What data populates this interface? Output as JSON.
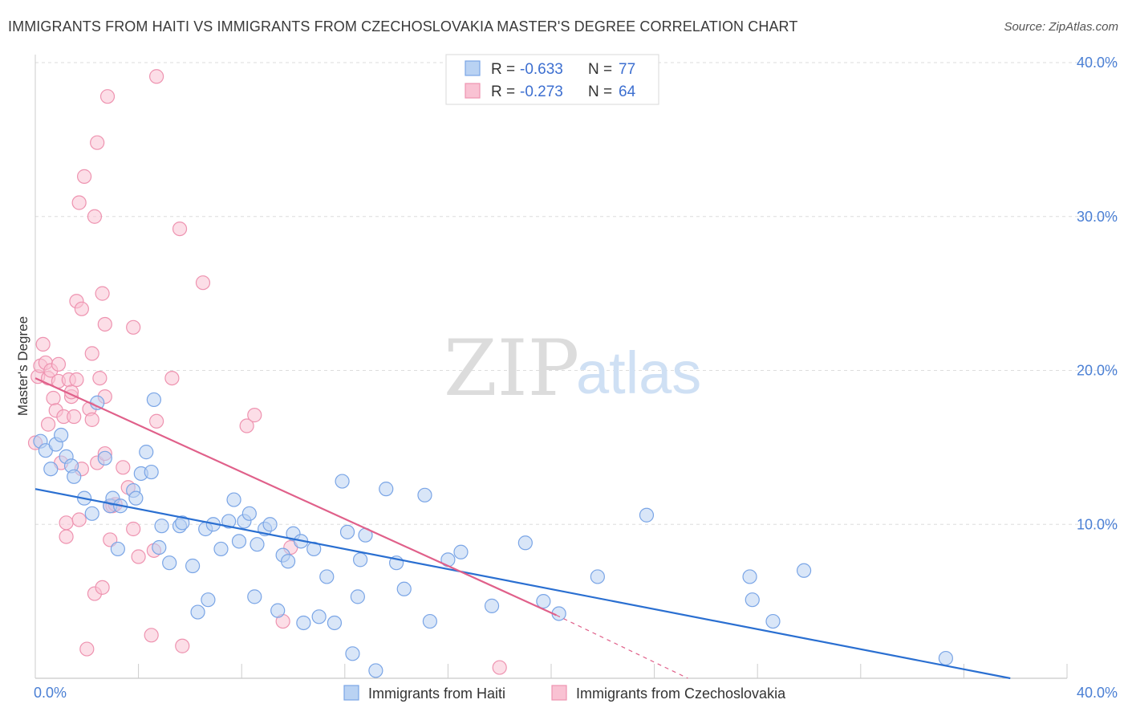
{
  "title": "IMMIGRANTS FROM HAITI VS IMMIGRANTS FROM CZECHOSLOVAKIA MASTER'S DEGREE CORRELATION CHART",
  "source": "Source: ZipAtlas.com",
  "watermark": {
    "zip": "ZIP",
    "atlas": "atlas"
  },
  "colors": {
    "haiti_fill": "#b9d2f3",
    "haiti_stroke": "#7aa5e6",
    "haiti_line": "#2a6fd1",
    "czech_fill": "#f9c2d3",
    "czech_stroke": "#ee93b0",
    "czech_line": "#e0608a",
    "grid": "#dddddd",
    "tick_text": "#4a7fd4"
  },
  "legend": {
    "haiti": {
      "r_label": "R = ",
      "r_value": "-0.633",
      "n_label": "N = ",
      "n_value": "77"
    },
    "czech": {
      "r_label": "R = ",
      "r_value": "-0.273",
      "n_label": "N = ",
      "n_value": "64"
    }
  },
  "bottom_legend": {
    "haiti": "Immigrants from Haiti",
    "czech": "Immigrants from Czechoslovakia"
  },
  "chart_data": {
    "type": "scatter",
    "title": "IMMIGRANTS FROM HAITI VS IMMIGRANTS FROM CZECHOSLOVAKIA MASTER'S DEGREE CORRELATION CHART",
    "xlabel": "",
    "ylabel": "Master's Degree",
    "xlim": [
      0,
      40
    ],
    "ylim": [
      0,
      40
    ],
    "x_tick_labels": [
      "0.0%",
      "40.0%"
    ],
    "y_ticks": [
      10,
      20,
      30,
      40
    ],
    "y_tick_labels": [
      "10.0%",
      "20.0%",
      "30.0%",
      "40.0%"
    ],
    "grid": true,
    "legend_placement": "top-center",
    "series": [
      {
        "name": "Immigrants from Haiti",
        "trend": {
          "x": [
            0,
            37.8
          ],
          "y": [
            12.3,
            0.0
          ]
        },
        "points": [
          [
            0.2,
            15.4
          ],
          [
            0.4,
            14.8
          ],
          [
            0.8,
            15.2
          ],
          [
            1.0,
            15.8
          ],
          [
            0.6,
            13.6
          ],
          [
            1.2,
            14.4
          ],
          [
            1.4,
            13.8
          ],
          [
            1.5,
            13.1
          ],
          [
            2.4,
            17.9
          ],
          [
            1.9,
            11.7
          ],
          [
            2.2,
            10.7
          ],
          [
            2.7,
            14.3
          ],
          [
            2.9,
            11.2
          ],
          [
            3.0,
            11.7
          ],
          [
            3.3,
            11.2
          ],
          [
            3.2,
            8.4
          ],
          [
            3.8,
            12.2
          ],
          [
            3.9,
            11.7
          ],
          [
            4.1,
            13.3
          ],
          [
            4.3,
            14.7
          ],
          [
            4.5,
            13.4
          ],
          [
            4.6,
            18.1
          ],
          [
            4.8,
            8.5
          ],
          [
            4.9,
            9.9
          ],
          [
            5.2,
            7.5
          ],
          [
            5.6,
            9.9
          ],
          [
            5.7,
            10.1
          ],
          [
            6.1,
            7.3
          ],
          [
            6.3,
            4.3
          ],
          [
            6.6,
            9.7
          ],
          [
            6.7,
            5.1
          ],
          [
            6.9,
            10.0
          ],
          [
            7.2,
            8.4
          ],
          [
            7.5,
            10.2
          ],
          [
            7.7,
            11.6
          ],
          [
            7.9,
            8.9
          ],
          [
            8.1,
            10.2
          ],
          [
            8.3,
            10.7
          ],
          [
            8.5,
            5.3
          ],
          [
            8.6,
            8.7
          ],
          [
            8.9,
            9.7
          ],
          [
            9.1,
            10.0
          ],
          [
            9.4,
            4.4
          ],
          [
            9.6,
            8.0
          ],
          [
            9.8,
            7.6
          ],
          [
            10.0,
            9.4
          ],
          [
            10.3,
            8.9
          ],
          [
            10.4,
            3.6
          ],
          [
            10.8,
            8.4
          ],
          [
            11.0,
            4.0
          ],
          [
            11.3,
            6.6
          ],
          [
            11.6,
            3.6
          ],
          [
            11.9,
            12.8
          ],
          [
            12.1,
            9.5
          ],
          [
            12.3,
            1.6
          ],
          [
            12.5,
            5.3
          ],
          [
            12.6,
            7.7
          ],
          [
            12.8,
            9.3
          ],
          [
            13.2,
            0.5
          ],
          [
            13.6,
            12.3
          ],
          [
            14.0,
            7.5
          ],
          [
            14.3,
            5.8
          ],
          [
            15.1,
            11.9
          ],
          [
            15.3,
            3.7
          ],
          [
            16.0,
            7.7
          ],
          [
            16.5,
            8.2
          ],
          [
            17.7,
            4.7
          ],
          [
            19.0,
            8.8
          ],
          [
            19.7,
            5.0
          ],
          [
            20.3,
            4.2
          ],
          [
            21.8,
            6.6
          ],
          [
            23.7,
            10.6
          ],
          [
            27.7,
            6.6
          ],
          [
            27.8,
            5.1
          ],
          [
            28.6,
            3.7
          ],
          [
            29.8,
            7.0
          ],
          [
            35.3,
            1.3
          ]
        ]
      },
      {
        "name": "Immigrants from Czechoslovakia",
        "trend": {
          "x": [
            0,
            20.2
          ],
          "y": [
            19.5,
            4.1
          ]
        },
        "trend_dashed": {
          "x": [
            20.2,
            25.3
          ],
          "y": [
            4.1,
            0.0
          ]
        },
        "points": [
          [
            0.1,
            19.6
          ],
          [
            0.2,
            20.3
          ],
          [
            0.3,
            21.7
          ],
          [
            0.4,
            20.5
          ],
          [
            0.5,
            19.5
          ],
          [
            0.5,
            16.5
          ],
          [
            0.6,
            20.0
          ],
          [
            0.7,
            18.2
          ],
          [
            0.8,
            17.4
          ],
          [
            0.9,
            20.4
          ],
          [
            0.9,
            19.3
          ],
          [
            1.0,
            14.0
          ],
          [
            1.1,
            17.0
          ],
          [
            1.2,
            10.1
          ],
          [
            1.2,
            9.2
          ],
          [
            1.3,
            19.4
          ],
          [
            1.4,
            18.3
          ],
          [
            1.4,
            18.6
          ],
          [
            1.5,
            17.0
          ],
          [
            1.6,
            19.4
          ],
          [
            1.6,
            24.5
          ],
          [
            1.7,
            30.9
          ],
          [
            1.7,
            10.3
          ],
          [
            1.8,
            24.0
          ],
          [
            1.8,
            13.6
          ],
          [
            1.9,
            32.6
          ],
          [
            2.0,
            1.9
          ],
          [
            2.1,
            17.5
          ],
          [
            2.2,
            16.8
          ],
          [
            2.2,
            21.1
          ],
          [
            2.3,
            5.5
          ],
          [
            2.3,
            30.0
          ],
          [
            2.4,
            14.0
          ],
          [
            2.4,
            34.8
          ],
          [
            2.5,
            19.5
          ],
          [
            2.6,
            25.0
          ],
          [
            2.6,
            5.9
          ],
          [
            2.7,
            14.6
          ],
          [
            2.7,
            18.3
          ],
          [
            2.7,
            23.0
          ],
          [
            2.8,
            37.8
          ],
          [
            2.9,
            11.2
          ],
          [
            2.9,
            9.0
          ],
          [
            3.0,
            11.2
          ],
          [
            3.1,
            11.3
          ],
          [
            3.4,
            13.7
          ],
          [
            3.6,
            12.4
          ],
          [
            3.8,
            9.7
          ],
          [
            3.8,
            22.8
          ],
          [
            4.0,
            7.9
          ],
          [
            4.5,
            2.8
          ],
          [
            4.6,
            8.3
          ],
          [
            4.7,
            16.7
          ],
          [
            4.7,
            39.1
          ],
          [
            5.3,
            19.5
          ],
          [
            5.6,
            29.2
          ],
          [
            5.7,
            2.1
          ],
          [
            6.5,
            25.7
          ],
          [
            8.2,
            16.4
          ],
          [
            8.5,
            17.1
          ],
          [
            9.6,
            3.7
          ],
          [
            9.9,
            8.5
          ],
          [
            18.0,
            0.7
          ],
          [
            0.0,
            15.3
          ]
        ]
      }
    ]
  }
}
